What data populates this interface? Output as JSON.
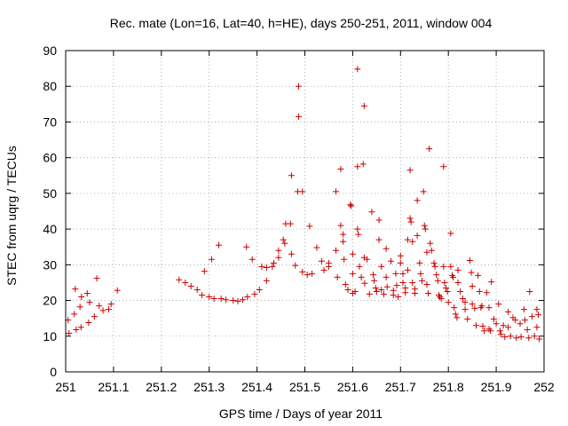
{
  "chart_data": {
    "type": "scatter",
    "title": "Rec. mate (Lon=16, Lat=40, h=HE), days 250-251, 2011, window 004",
    "xlabel": "GPS time / Days of year 2011",
    "ylabel": "STEC from uqrg / TECUs",
    "xlim": [
      251,
      252
    ],
    "ylim": [
      0,
      90
    ],
    "xticks": [
      251,
      251.1,
      251.2,
      251.3,
      251.4,
      251.5,
      251.6,
      251.7,
      251.8,
      251.9,
      252
    ],
    "xtick_labels": [
      "251",
      "251.1",
      "251.2",
      "251.3",
      "251.4",
      "251.5",
      "251.6",
      "251.7",
      "251.8",
      "251.9",
      "252"
    ],
    "yticks": [
      0,
      10,
      20,
      30,
      40,
      50,
      60,
      70,
      80,
      90
    ],
    "ytick_labels": [
      "0",
      "10",
      "20",
      "30",
      "40",
      "50",
      "60",
      "70",
      "80",
      "90"
    ],
    "grid": true,
    "marker": "plus",
    "color": "#cc0000",
    "points": [
      [
        251.005,
        14.5
      ],
      [
        251.007,
        10.8
      ],
      [
        251.02,
        23.2
      ],
      [
        251.018,
        16.2
      ],
      [
        251.022,
        11.8
      ],
      [
        251.03,
        18.2
      ],
      [
        251.033,
        21.0
      ],
      [
        251.032,
        12.5
      ],
      [
        251.045,
        22.0
      ],
      [
        251.05,
        19.5
      ],
      [
        251.048,
        13.8
      ],
      [
        251.06,
        15.5
      ],
      [
        251.065,
        26.2
      ],
      [
        251.07,
        18.5
      ],
      [
        251.078,
        17.2
      ],
      [
        251.09,
        17.5
      ],
      [
        251.095,
        19.0
      ],
      [
        251.108,
        22.8
      ],
      [
        251.237,
        25.8
      ],
      [
        251.25,
        25.0
      ],
      [
        251.262,
        24.0
      ],
      [
        251.275,
        23.0
      ],
      [
        251.285,
        21.5
      ],
      [
        251.29,
        28.2
      ],
      [
        251.3,
        21.0
      ],
      [
        251.305,
        31.5
      ],
      [
        251.31,
        20.5
      ],
      [
        251.32,
        35.5
      ],
      [
        251.325,
        20.5
      ],
      [
        251.335,
        20.2
      ],
      [
        251.35,
        20.0
      ],
      [
        251.36,
        19.8
      ],
      [
        251.37,
        20.2
      ],
      [
        251.378,
        35.0
      ],
      [
        251.38,
        21.0
      ],
      [
        251.39,
        31.5
      ],
      [
        251.395,
        21.8
      ],
      [
        251.405,
        23.0
      ],
      [
        251.41,
        29.5
      ],
      [
        251.42,
        29.2
      ],
      [
        251.42,
        25.5
      ],
      [
        251.432,
        29.5
      ],
      [
        251.435,
        30.5
      ],
      [
        251.445,
        32.0
      ],
      [
        251.445,
        34.0
      ],
      [
        251.455,
        37.0
      ],
      [
        251.458,
        36.0
      ],
      [
        251.46,
        41.5
      ],
      [
        251.47,
        41.5
      ],
      [
        251.472,
        33.0
      ],
      [
        251.472,
        55.0
      ],
      [
        251.48,
        29.8
      ],
      [
        251.485,
        50.5
      ],
      [
        251.487,
        80.0
      ],
      [
        251.487,
        71.5
      ],
      [
        251.495,
        50.5
      ],
      [
        251.495,
        28.0
      ],
      [
        251.505,
        27.2
      ],
      [
        251.51,
        40.8
      ],
      [
        251.515,
        27.5
      ],
      [
        251.525,
        34.8
      ],
      [
        251.535,
        31.0
      ],
      [
        251.54,
        28.5
      ],
      [
        251.55,
        30.5
      ],
      [
        251.55,
        29.5
      ],
      [
        251.565,
        50.5
      ],
      [
        251.565,
        34.0
      ],
      [
        251.568,
        26.5
      ],
      [
        251.575,
        56.8
      ],
      [
        251.575,
        41.0
      ],
      [
        251.58,
        38.5
      ],
      [
        251.58,
        36.5
      ],
      [
        251.582,
        31.5
      ],
      [
        251.585,
        24.5
      ],
      [
        251.59,
        23.0
      ],
      [
        251.595,
        46.8
      ],
      [
        251.597,
        46.5
      ],
      [
        251.6,
        33.0
      ],
      [
        251.6,
        27.5
      ],
      [
        251.6,
        22.0
      ],
      [
        251.605,
        22.5
      ],
      [
        251.61,
        84.8
      ],
      [
        251.61,
        57.5
      ],
      [
        251.61,
        40.0
      ],
      [
        251.612,
        38.5
      ],
      [
        251.614,
        29.5
      ],
      [
        251.618,
        26.5
      ],
      [
        251.622,
        58.2
      ],
      [
        251.624,
        74.5
      ],
      [
        251.624,
        32.0
      ],
      [
        251.625,
        24.8
      ],
      [
        251.63,
        31.5
      ],
      [
        251.635,
        21.8
      ],
      [
        251.64,
        44.8
      ],
      [
        251.643,
        27.2
      ],
      [
        251.645,
        25.5
      ],
      [
        251.648,
        23.5
      ],
      [
        251.65,
        22.5
      ],
      [
        251.655,
        42.5
      ],
      [
        251.655,
        37.0
      ],
      [
        251.66,
        29.5
      ],
      [
        251.66,
        23.0
      ],
      [
        251.665,
        21.8
      ],
      [
        251.67,
        34.5
      ],
      [
        251.67,
        26.5
      ],
      [
        251.672,
        23.8
      ],
      [
        251.68,
        31.0
      ],
      [
        251.685,
        22.8
      ],
      [
        251.685,
        21.5
      ],
      [
        251.69,
        27.5
      ],
      [
        251.692,
        24.2
      ],
      [
        251.695,
        21.0
      ],
      [
        251.7,
        32.5
      ],
      [
        251.7,
        30.5
      ],
      [
        251.705,
        27.5
      ],
      [
        251.705,
        25.0
      ],
      [
        251.71,
        23.5
      ],
      [
        251.71,
        22.2
      ],
      [
        251.715,
        37.0
      ],
      [
        251.715,
        28.5
      ],
      [
        251.72,
        56.5
      ],
      [
        251.72,
        43.0
      ],
      [
        251.722,
        42.0
      ],
      [
        251.725,
        36.5
      ],
      [
        251.725,
        25.0
      ],
      [
        251.73,
        23.2
      ],
      [
        251.73,
        22.0
      ],
      [
        251.735,
        48.0
      ],
      [
        251.735,
        38.2
      ],
      [
        251.74,
        30.5
      ],
      [
        251.742,
        27.5
      ],
      [
        251.745,
        25.5
      ],
      [
        251.748,
        50.5
      ],
      [
        251.75,
        41.0
      ],
      [
        251.752,
        40.0
      ],
      [
        251.755,
        33.5
      ],
      [
        251.755,
        24.5
      ],
      [
        251.758,
        22.0
      ],
      [
        251.76,
        62.5
      ],
      [
        251.762,
        36.0
      ],
      [
        251.765,
        34.0
      ],
      [
        251.77,
        30.5
      ],
      [
        251.772,
        29.5
      ],
      [
        251.775,
        27.2
      ],
      [
        251.778,
        25.5
      ],
      [
        251.78,
        21.5
      ],
      [
        251.782,
        21.0
      ],
      [
        251.785,
        20.5
      ],
      [
        251.79,
        57.5
      ],
      [
        251.79,
        29.5
      ],
      [
        251.792,
        25.0
      ],
      [
        251.795,
        23.5
      ],
      [
        251.798,
        22.5
      ],
      [
        251.8,
        19.5
      ],
      [
        251.805,
        38.8
      ],
      [
        251.805,
        29.5
      ],
      [
        251.808,
        27.0
      ],
      [
        251.81,
        26.5
      ],
      [
        251.812,
        18.0
      ],
      [
        251.815,
        16.2
      ],
      [
        251.818,
        15.2
      ],
      [
        251.82,
        28.5
      ],
      [
        251.82,
        25.0
      ],
      [
        251.825,
        22.5
      ],
      [
        251.83,
        20.5
      ],
      [
        251.835,
        19.5
      ],
      [
        251.835,
        17.5
      ],
      [
        251.84,
        14.8
      ],
      [
        251.845,
        31.2
      ],
      [
        251.848,
        27.8
      ],
      [
        251.85,
        24.0
      ],
      [
        251.85,
        19.0
      ],
      [
        251.855,
        17.8
      ],
      [
        251.858,
        13.0
      ],
      [
        251.862,
        27.0
      ],
      [
        251.865,
        22.5
      ],
      [
        251.868,
        18.0
      ],
      [
        251.87,
        18.5
      ],
      [
        251.872,
        12.8
      ],
      [
        251.875,
        11.5
      ],
      [
        251.88,
        22.2
      ],
      [
        251.885,
        18.0
      ],
      [
        251.885,
        12.0
      ],
      [
        251.888,
        11.5
      ],
      [
        251.89,
        25.2
      ],
      [
        251.895,
        14.8
      ],
      [
        251.9,
        13.5
      ],
      [
        251.905,
        19.0
      ],
      [
        251.908,
        11.5
      ],
      [
        251.91,
        10.5
      ],
      [
        251.915,
        13.0
      ],
      [
        251.918,
        9.8
      ],
      [
        251.925,
        16.8
      ],
      [
        251.925,
        12.5
      ],
      [
        251.93,
        10.0
      ],
      [
        251.935,
        15.2
      ],
      [
        251.94,
        14.5
      ],
      [
        251.942,
        9.5
      ],
      [
        251.95,
        13.5
      ],
      [
        251.952,
        9.8
      ],
      [
        251.958,
        17.5
      ],
      [
        251.96,
        14.5
      ],
      [
        251.965,
        11.8
      ],
      [
        251.968,
        9.5
      ],
      [
        251.97,
        22.5
      ],
      [
        251.975,
        15.5
      ],
      [
        251.98,
        10.0
      ],
      [
        251.985,
        17.5
      ],
      [
        251.985,
        12.5
      ],
      [
        251.988,
        16.0
      ],
      [
        251.99,
        9.2
      ]
    ]
  }
}
